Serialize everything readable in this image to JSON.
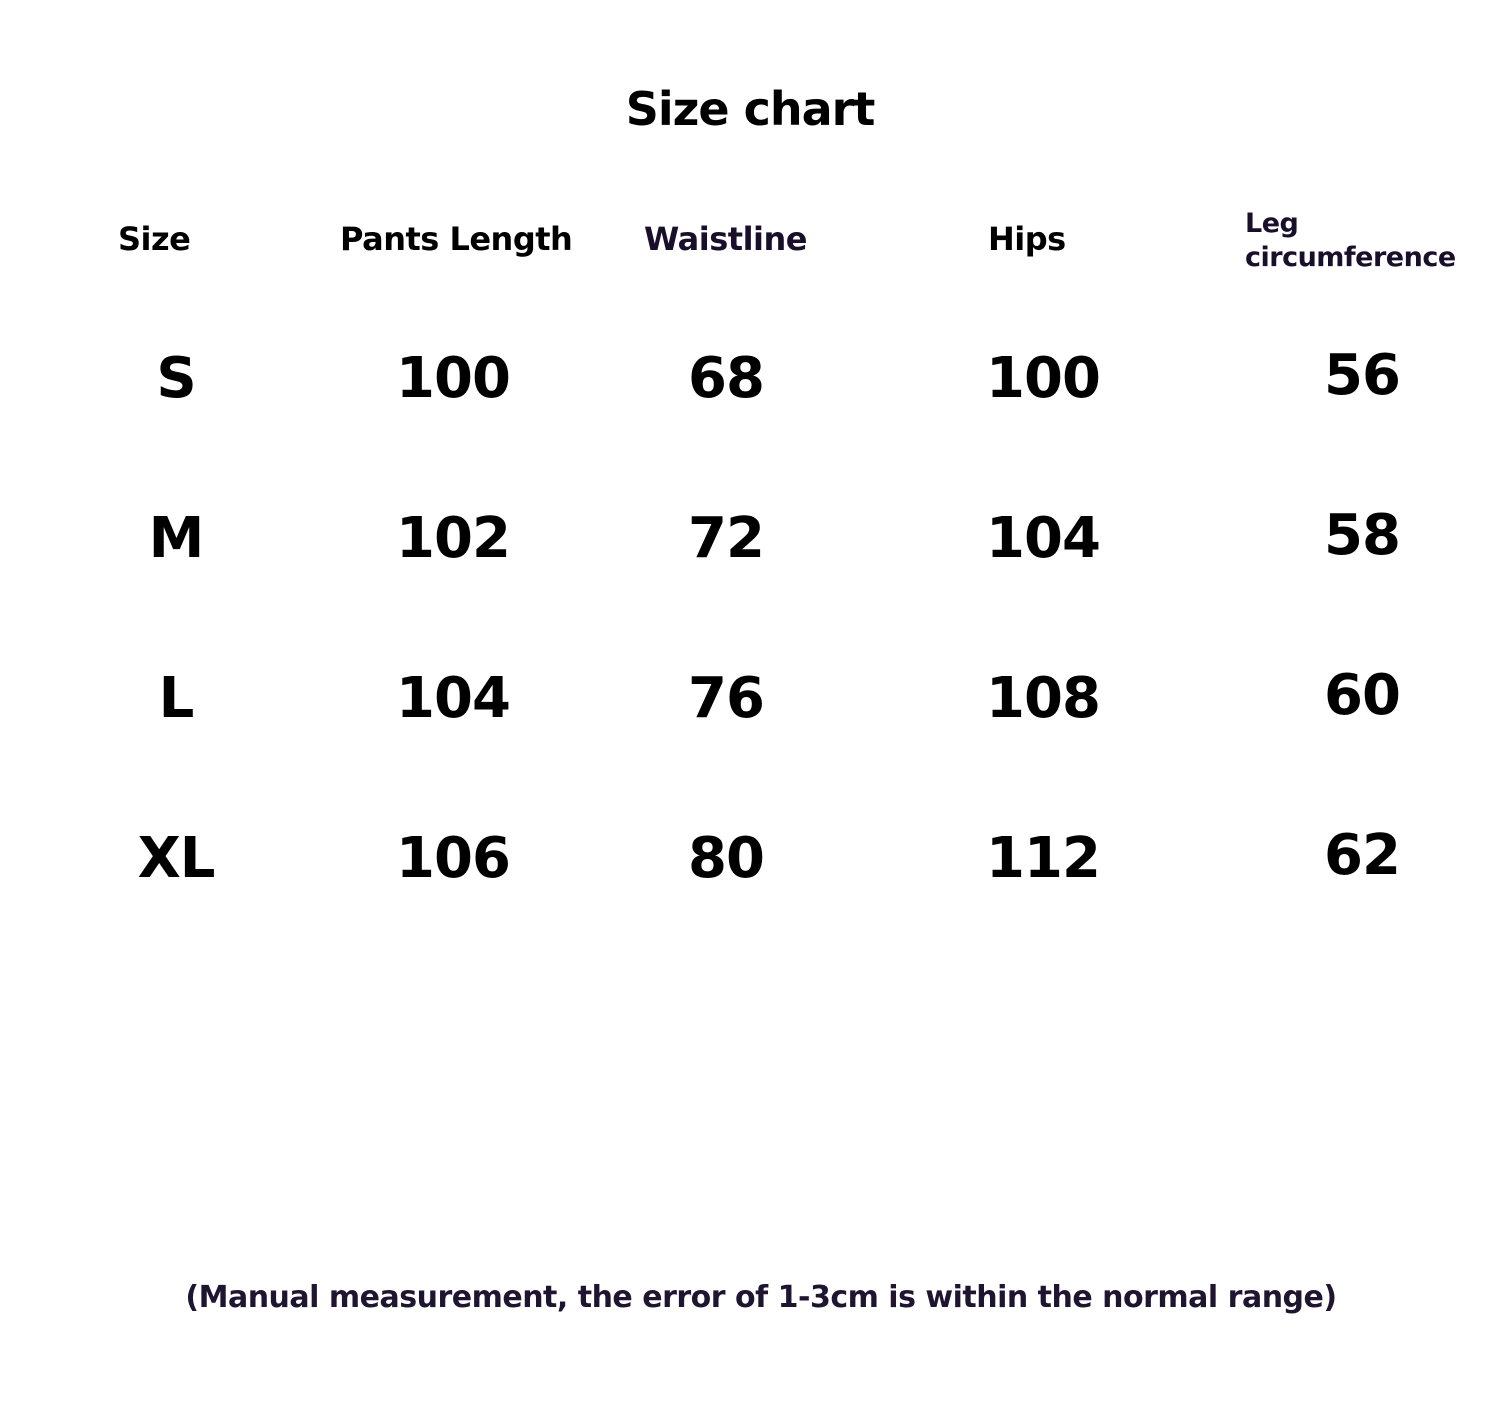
{
  "title": "Size chart",
  "headers": [
    "Size",
    "Pants Length",
    "Waistline",
    "Hips",
    "Leg",
    "circumference"
  ],
  "rows": [
    [
      "S",
      "100",
      "68",
      "100",
      "56"
    ],
    [
      "M",
      "102",
      "72",
      "104",
      "58"
    ],
    [
      "L",
      "104",
      "76",
      "108",
      "60"
    ],
    [
      "XL",
      "106",
      "80",
      "112",
      "62"
    ]
  ],
  "note": "(Manual measurement, the error of 1-3cm is within the normal range)",
  "colors": {
    "text": "#000000",
    "accent_text": "#1a0f2a"
  }
}
